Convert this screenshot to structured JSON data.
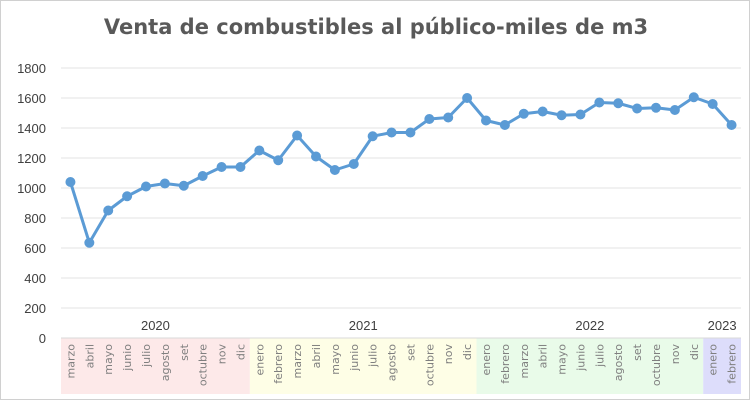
{
  "chart_data": {
    "type": "line",
    "title": "Venta de combustibles al público-miles de m3",
    "ylim": [
      0,
      1800
    ],
    "yticks": [
      0,
      200,
      400,
      600,
      800,
      1000,
      1200,
      1400,
      1600,
      1800
    ],
    "grid": true,
    "legend": "none",
    "color": "#5B9BD5",
    "years": [
      {
        "label": "2020",
        "months": [
          "marzo",
          "abril",
          "mayo",
          "junio",
          "julio",
          "agosto",
          "set",
          "octubre",
          "nov",
          "dic"
        ],
        "band_color": "#FDE9E9"
      },
      {
        "label": "2021",
        "months": [
          "enero",
          "febrero",
          "marzo",
          "abril",
          "mayo",
          "junio",
          "julio",
          "agosto",
          "set",
          "octubre",
          "nov",
          "dic"
        ],
        "band_color": "#FEFEE6"
      },
      {
        "label": "2022",
        "months": [
          "enero",
          "febrero",
          "marzo",
          "abril",
          "mayo",
          "junio",
          "julio",
          "agosto",
          "set",
          "octubre",
          "nov",
          "dic"
        ],
        "band_color": "#E9FBE9"
      },
      {
        "label": "2023",
        "months": [
          "enero",
          "febrero"
        ],
        "band_color": "#DDDDFB"
      }
    ],
    "values": [
      1040,
      635,
      850,
      945,
      1010,
      1030,
      1015,
      1080,
      1140,
      1140,
      1250,
      1185,
      1350,
      1210,
      1120,
      1160,
      1345,
      1370,
      1370,
      1460,
      1470,
      1600,
      1450,
      1420,
      1495,
      1510,
      1485,
      1490,
      1570,
      1565,
      1530,
      1535,
      1520,
      1605,
      1560,
      1420
    ]
  }
}
